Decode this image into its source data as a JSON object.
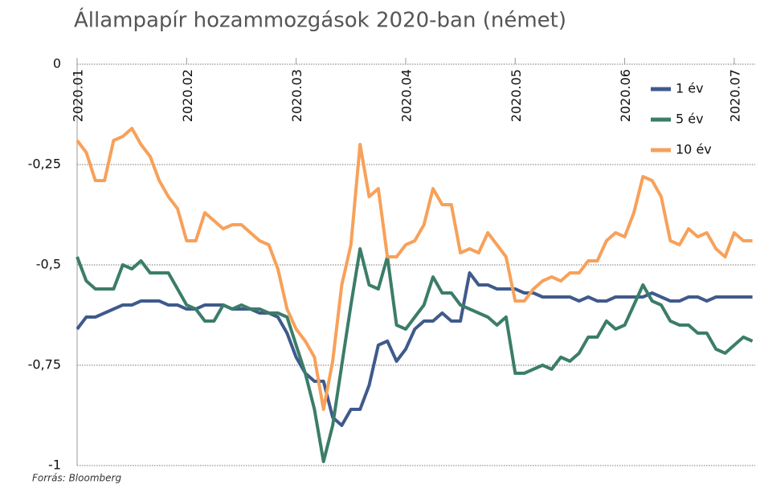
{
  "chart_data": {
    "type": "line",
    "title": "Állampapír hozammozgások 2020-ban (német)",
    "source": "Forrás: Bloomberg",
    "categories": [
      "2020.01",
      null,
      null,
      null,
      null,
      null,
      null,
      null,
      null,
      null,
      null,
      null,
      "2020.02",
      null,
      null,
      null,
      null,
      null,
      null,
      null,
      null,
      null,
      null,
      null,
      "2020.03",
      null,
      null,
      null,
      null,
      null,
      null,
      null,
      null,
      null,
      null,
      null,
      "2020.04",
      null,
      null,
      null,
      null,
      null,
      null,
      null,
      null,
      null,
      null,
      null,
      "2020.05",
      null,
      null,
      null,
      null,
      null,
      null,
      null,
      null,
      null,
      null,
      null,
      "2020.06",
      null,
      null,
      null,
      null,
      null,
      null,
      null,
      null,
      null,
      null,
      null,
      "2020.07",
      null,
      null
    ],
    "series": [
      {
        "name": "1 év",
        "color": "#3f5a8c",
        "values": [
          -0.66,
          -0.63,
          -0.63,
          -0.62,
          -0.61,
          -0.6,
          -0.6,
          -0.59,
          -0.59,
          -0.59,
          -0.6,
          -0.6,
          -0.61,
          -0.61,
          -0.6,
          -0.6,
          -0.6,
          -0.61,
          -0.61,
          -0.61,
          -0.62,
          -0.62,
          -0.63,
          -0.67,
          -0.73,
          -0.77,
          -0.79,
          -0.79,
          -0.88,
          -0.9,
          -0.86,
          -0.86,
          -0.8,
          -0.7,
          -0.69,
          -0.74,
          -0.71,
          -0.66,
          -0.64,
          -0.64,
          -0.62,
          -0.64,
          -0.64,
          -0.52,
          -0.55,
          -0.55,
          -0.56,
          -0.56,
          -0.56,
          -0.57,
          -0.57,
          -0.58,
          -0.58,
          -0.58,
          -0.58,
          -0.59,
          -0.58,
          -0.59,
          -0.59,
          -0.58,
          -0.58,
          -0.58,
          -0.58,
          -0.57,
          -0.58,
          -0.59,
          -0.59,
          -0.58,
          -0.58,
          -0.59,
          -0.58,
          -0.58,
          -0.58,
          -0.58,
          -0.58
        ]
      },
      {
        "name": "5 év",
        "color": "#3b7d68",
        "values": [
          -0.48,
          -0.54,
          -0.56,
          -0.56,
          -0.56,
          -0.5,
          -0.51,
          -0.49,
          -0.52,
          -0.52,
          -0.52,
          -0.56,
          -0.6,
          -0.61,
          -0.64,
          -0.64,
          -0.6,
          -0.61,
          -0.6,
          -0.61,
          -0.61,
          -0.62,
          -0.62,
          -0.63,
          -0.7,
          -0.77,
          -0.86,
          -0.99,
          -0.9,
          -0.75,
          -0.6,
          -0.46,
          -0.55,
          -0.56,
          -0.48,
          -0.65,
          -0.66,
          -0.63,
          -0.6,
          -0.53,
          -0.57,
          -0.57,
          -0.6,
          -0.61,
          -0.62,
          -0.63,
          -0.65,
          -0.63,
          -0.77,
          -0.77,
          -0.76,
          -0.75,
          -0.76,
          -0.73,
          -0.74,
          -0.72,
          -0.68,
          -0.68,
          -0.64,
          -0.66,
          -0.65,
          -0.6,
          -0.55,
          -0.59,
          -0.6,
          -0.64,
          -0.65,
          -0.65,
          -0.67,
          -0.67,
          -0.71,
          -0.72,
          -0.7,
          -0.68,
          -0.69
        ]
      },
      {
        "name": "10 év",
        "color": "#f7a15a",
        "values": [
          -0.19,
          -0.22,
          -0.29,
          -0.29,
          -0.19,
          -0.18,
          -0.16,
          -0.2,
          -0.23,
          -0.29,
          -0.33,
          -0.36,
          -0.44,
          -0.44,
          -0.37,
          -0.39,
          -0.41,
          -0.4,
          -0.4,
          -0.42,
          -0.44,
          -0.45,
          -0.51,
          -0.61,
          -0.66,
          -0.69,
          -0.73,
          -0.86,
          -0.74,
          -0.55,
          -0.45,
          -0.2,
          -0.33,
          -0.31,
          -0.48,
          -0.48,
          -0.45,
          -0.44,
          -0.4,
          -0.31,
          -0.35,
          -0.35,
          -0.47,
          -0.46,
          -0.47,
          -0.42,
          -0.45,
          -0.48,
          -0.59,
          -0.59,
          -0.56,
          -0.54,
          -0.53,
          -0.54,
          -0.52,
          -0.52,
          -0.49,
          -0.49,
          -0.44,
          -0.42,
          -0.43,
          -0.37,
          -0.28,
          -0.29,
          -0.33,
          -0.44,
          -0.45,
          -0.41,
          -0.43,
          -0.42,
          -0.46,
          -0.48,
          -0.42,
          -0.44,
          -0.44
        ]
      }
    ],
    "ylim": [
      -1,
      0
    ],
    "yticks": [
      0,
      {
        "value": -0.25,
        "label": "-0,25"
      },
      {
        "value": -0.5,
        "label": "-0,5"
      },
      {
        "value": -0.75,
        "label": "-0,75"
      },
      -1
    ],
    "grid": true
  }
}
